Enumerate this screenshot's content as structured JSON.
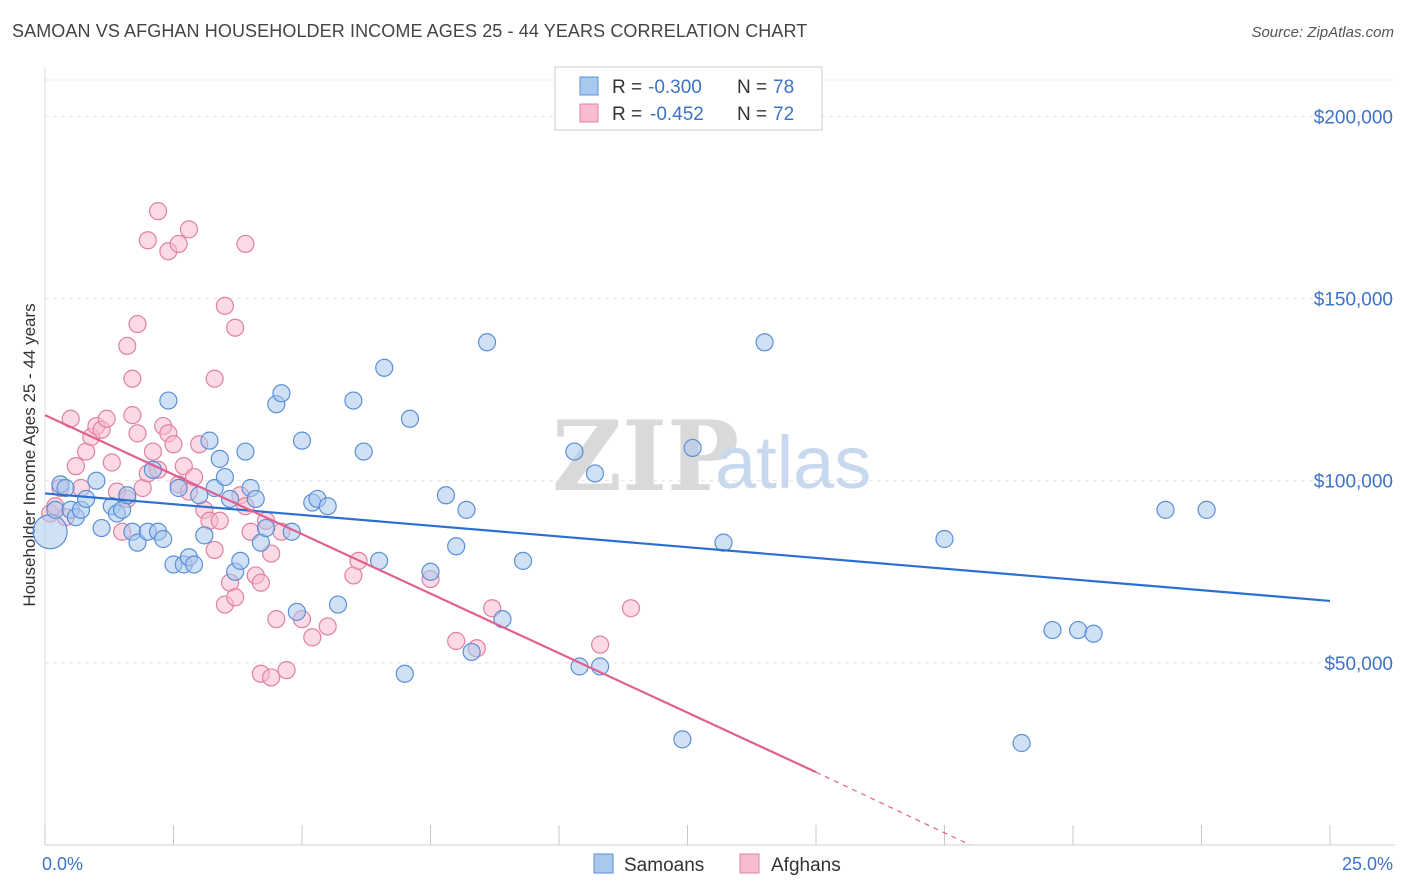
{
  "title": "SAMOAN VS AFGHAN HOUSEHOLDER INCOME AGES 25 - 44 YEARS CORRELATION CHART",
  "source": "Source: ZipAtlas.com",
  "watermark": {
    "part1": "ZIP",
    "part2": "atlas"
  },
  "legend": {
    "rows": [
      {
        "r_label": "R =",
        "r_value": "-0.300",
        "n_label": "N =",
        "n_value": "78"
      },
      {
        "r_label": "R =",
        "r_value": "-0.452",
        "n_label": "N =",
        "n_value": "72"
      }
    ]
  },
  "bottom_legend": [
    "Samoans",
    "Afghans"
  ],
  "colors": {
    "samoans_fill": "#a9c8ee",
    "samoans_stroke": "#5b8fd6",
    "samoans_line": "#2b6fd0",
    "afghans_fill": "#f7bcd0",
    "afghans_stroke": "#e0829f",
    "afghans_line": "#e06090",
    "grid": "#e2e2e2",
    "tick_text": "#3d72c8"
  },
  "chart_data": {
    "type": "scatter",
    "title": "SAMOAN VS AFGHAN HOUSEHOLDER INCOME AGES 25 - 44 YEARS CORRELATION CHART",
    "xlabel": "",
    "ylabel": "Householder Income Ages 25 - 44 years",
    "xlim": [
      0,
      25
    ],
    "ylim": [
      0,
      210000
    ],
    "x_tick_labels": [
      "0.0%",
      "25.0%"
    ],
    "y_ticks": [
      50000,
      100000,
      150000,
      200000
    ],
    "y_tick_labels": [
      "$50,000",
      "$100,000",
      "$150,000",
      "$200,000"
    ],
    "grid": true,
    "legend_position": "top-center",
    "series": [
      {
        "name": "Samoans",
        "r": -0.3,
        "n": 78,
        "trend": {
          "x": [
            0,
            25
          ],
          "y": [
            96500,
            67000
          ]
        },
        "points": [
          [
            0.1,
            86000
          ],
          [
            0.2,
            92000
          ],
          [
            0.3,
            99000
          ],
          [
            0.4,
            98000
          ],
          [
            0.5,
            92000
          ],
          [
            0.6,
            90000
          ],
          [
            0.7,
            92000
          ],
          [
            0.8,
            95000
          ],
          [
            1.0,
            100000
          ],
          [
            1.1,
            87000
          ],
          [
            1.3,
            93000
          ],
          [
            1.4,
            91000
          ],
          [
            1.5,
            92000
          ],
          [
            1.6,
            96000
          ],
          [
            1.7,
            86000
          ],
          [
            1.8,
            83000
          ],
          [
            2.0,
            86000
          ],
          [
            2.1,
            103000
          ],
          [
            2.2,
            86000
          ],
          [
            2.3,
            84000
          ],
          [
            2.4,
            122000
          ],
          [
            2.5,
            77000
          ],
          [
            2.6,
            98000
          ],
          [
            2.7,
            77000
          ],
          [
            2.8,
            79000
          ],
          [
            2.9,
            77000
          ],
          [
            3.0,
            96000
          ],
          [
            3.1,
            85000
          ],
          [
            3.2,
            111000
          ],
          [
            3.3,
            98000
          ],
          [
            3.4,
            106000
          ],
          [
            3.5,
            101000
          ],
          [
            3.6,
            95000
          ],
          [
            3.7,
            75000
          ],
          [
            3.8,
            78000
          ],
          [
            3.9,
            108000
          ],
          [
            4.0,
            98000
          ],
          [
            4.1,
            95000
          ],
          [
            4.2,
            83000
          ],
          [
            4.3,
            87000
          ],
          [
            4.5,
            121000
          ],
          [
            4.6,
            124000
          ],
          [
            4.8,
            86000
          ],
          [
            4.9,
            64000
          ],
          [
            5.0,
            111000
          ],
          [
            5.2,
            94000
          ],
          [
            5.3,
            95000
          ],
          [
            5.5,
            93000
          ],
          [
            5.7,
            66000
          ],
          [
            6.0,
            122000
          ],
          [
            6.2,
            108000
          ],
          [
            6.5,
            78000
          ],
          [
            6.6,
            131000
          ],
          [
            7.0,
            47000
          ],
          [
            7.1,
            117000
          ],
          [
            7.5,
            75000
          ],
          [
            7.8,
            96000
          ],
          [
            8.0,
            82000
          ],
          [
            8.2,
            92000
          ],
          [
            8.3,
            53000
          ],
          [
            8.6,
            138000
          ],
          [
            8.9,
            62000
          ],
          [
            9.3,
            78000
          ],
          [
            10.3,
            108000
          ],
          [
            10.4,
            49000
          ],
          [
            10.7,
            102000
          ],
          [
            10.8,
            49000
          ],
          [
            12.4,
            29000
          ],
          [
            12.6,
            109000
          ],
          [
            13.2,
            83000
          ],
          [
            14.0,
            138000
          ],
          [
            17.5,
            84000
          ],
          [
            19.0,
            28000
          ],
          [
            19.6,
            59000
          ],
          [
            20.1,
            59000
          ],
          [
            20.4,
            58000
          ],
          [
            21.8,
            92000
          ],
          [
            22.6,
            92000
          ]
        ]
      },
      {
        "name": "Afghans",
        "r": -0.452,
        "n": 72,
        "trend": {
          "x": [
            0,
            15
          ],
          "y": [
            118000,
            20000
          ]
        },
        "trend_dashed": {
          "x": [
            15,
            18
          ],
          "y": [
            20000,
            0
          ]
        },
        "points": [
          [
            0.1,
            91000
          ],
          [
            0.2,
            93000
          ],
          [
            0.3,
            98000
          ],
          [
            0.4,
            90000
          ],
          [
            0.5,
            117000
          ],
          [
            0.6,
            104000
          ],
          [
            0.7,
            98000
          ],
          [
            0.8,
            108000
          ],
          [
            0.9,
            112000
          ],
          [
            1.0,
            115000
          ],
          [
            1.1,
            114000
          ],
          [
            1.2,
            117000
          ],
          [
            1.3,
            105000
          ],
          [
            1.4,
            97000
          ],
          [
            1.5,
            86000
          ],
          [
            1.6,
            95000
          ],
          [
            1.7,
            118000
          ],
          [
            1.8,
            113000
          ],
          [
            1.9,
            98000
          ],
          [
            2.0,
            102000
          ],
          [
            2.1,
            108000
          ],
          [
            2.2,
            103000
          ],
          [
            2.3,
            115000
          ],
          [
            2.4,
            113000
          ],
          [
            2.5,
            110000
          ],
          [
            2.6,
            99000
          ],
          [
            2.7,
            104000
          ],
          [
            2.8,
            97000
          ],
          [
            2.9,
            101000
          ],
          [
            3.0,
            110000
          ],
          [
            3.1,
            92000
          ],
          [
            3.2,
            89000
          ],
          [
            3.3,
            81000
          ],
          [
            3.4,
            89000
          ],
          [
            3.5,
            66000
          ],
          [
            3.6,
            72000
          ],
          [
            3.7,
            68000
          ],
          [
            3.8,
            96000
          ],
          [
            3.9,
            93000
          ],
          [
            4.0,
            86000
          ],
          [
            4.1,
            74000
          ],
          [
            4.2,
            72000
          ],
          [
            4.3,
            89000
          ],
          [
            4.4,
            80000
          ],
          [
            4.5,
            62000
          ],
          [
            4.6,
            86000
          ],
          [
            4.7,
            48000
          ],
          [
            5.0,
            62000
          ],
          [
            5.2,
            57000
          ],
          [
            5.5,
            60000
          ],
          [
            6.0,
            74000
          ],
          [
            6.1,
            78000
          ],
          [
            7.5,
            73000
          ],
          [
            8.0,
            56000
          ],
          [
            8.4,
            54000
          ],
          [
            8.7,
            65000
          ],
          [
            10.8,
            55000
          ],
          [
            11.4,
            65000
          ],
          [
            1.6,
            137000
          ],
          [
            1.7,
            128000
          ],
          [
            1.8,
            143000
          ],
          [
            2.0,
            166000
          ],
          [
            2.2,
            174000
          ],
          [
            2.4,
            163000
          ],
          [
            2.6,
            165000
          ],
          [
            2.8,
            169000
          ],
          [
            3.3,
            128000
          ],
          [
            3.5,
            148000
          ],
          [
            3.7,
            142000
          ],
          [
            3.9,
            165000
          ],
          [
            4.2,
            47000
          ],
          [
            4.4,
            46000
          ]
        ]
      }
    ]
  }
}
